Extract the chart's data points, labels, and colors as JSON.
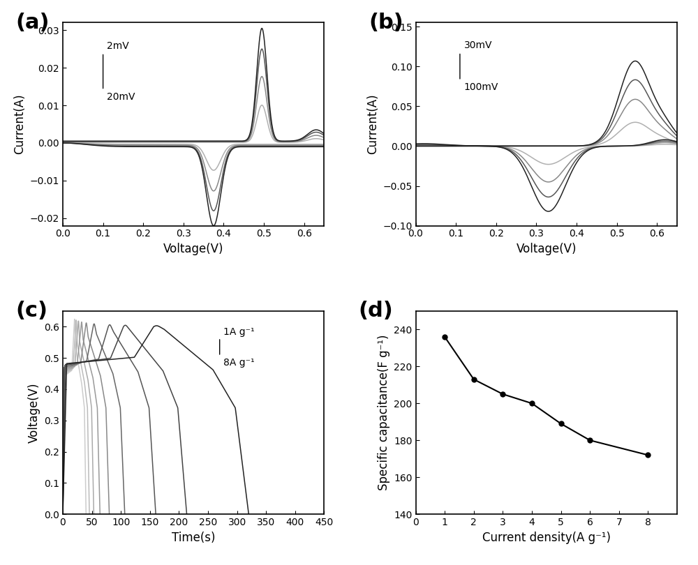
{
  "panel_labels": [
    "(a)",
    "(b)",
    "(c)",
    "(d)"
  ],
  "panel_label_fontsize": 22,
  "panel_label_fontweight": "bold",
  "a_xlabel": "Voltage(V)",
  "a_ylabel": "Current(A)",
  "a_xlim": [
    0,
    0.65
  ],
  "a_ylim": [
    -0.022,
    0.032
  ],
  "a_xticks": [
    0,
    0.1,
    0.2,
    0.3,
    0.4,
    0.5,
    0.6
  ],
  "a_yticks": [
    -0.02,
    -0.01,
    0.0,
    0.01,
    0.02,
    0.03
  ],
  "a_annotation_top": "2mV",
  "a_annotation_bot": "20mV",
  "b_xlabel": "Voltage(V)",
  "b_ylabel": "Current(A)",
  "b_xlim": [
    0,
    0.65
  ],
  "b_ylim": [
    -0.1,
    0.155
  ],
  "b_xticks": [
    0,
    0.1,
    0.2,
    0.3,
    0.4,
    0.5,
    0.6
  ],
  "b_yticks": [
    -0.1,
    -0.05,
    0.0,
    0.05,
    0.1,
    0.15
  ],
  "b_annotation_top": "30mV",
  "b_annotation_bot": "100mV",
  "c_xlabel": "Time(s)",
  "c_ylabel": "Voltage(V)",
  "c_xlim": [
    0,
    450
  ],
  "c_ylim": [
    0.0,
    0.65
  ],
  "c_xticks": [
    0,
    50,
    100,
    150,
    200,
    250,
    300,
    350,
    400,
    450
  ],
  "c_yticks": [
    0.0,
    0.1,
    0.2,
    0.3,
    0.4,
    0.5,
    0.6
  ],
  "c_annotation_top": "1A g⁻¹",
  "c_annotation_bot": "8A g⁻¹",
  "d_xlabel": "Current density(A g⁻¹)",
  "d_ylabel": "Specific capacitance(F g⁻¹)",
  "d_xlim": [
    0,
    9
  ],
  "d_ylim": [
    140,
    250
  ],
  "d_xticks": [
    0,
    1,
    2,
    3,
    4,
    5,
    6,
    7,
    8
  ],
  "d_yticks": [
    140,
    160,
    180,
    200,
    220,
    240
  ],
  "d_x": [
    1,
    2,
    3,
    4,
    5,
    6,
    8
  ],
  "d_y": [
    236,
    213,
    205,
    200,
    189,
    180,
    172
  ],
  "bg_color": "#ffffff",
  "axes_linewidth": 1.2,
  "tick_fontsize": 10,
  "label_fontsize": 12
}
